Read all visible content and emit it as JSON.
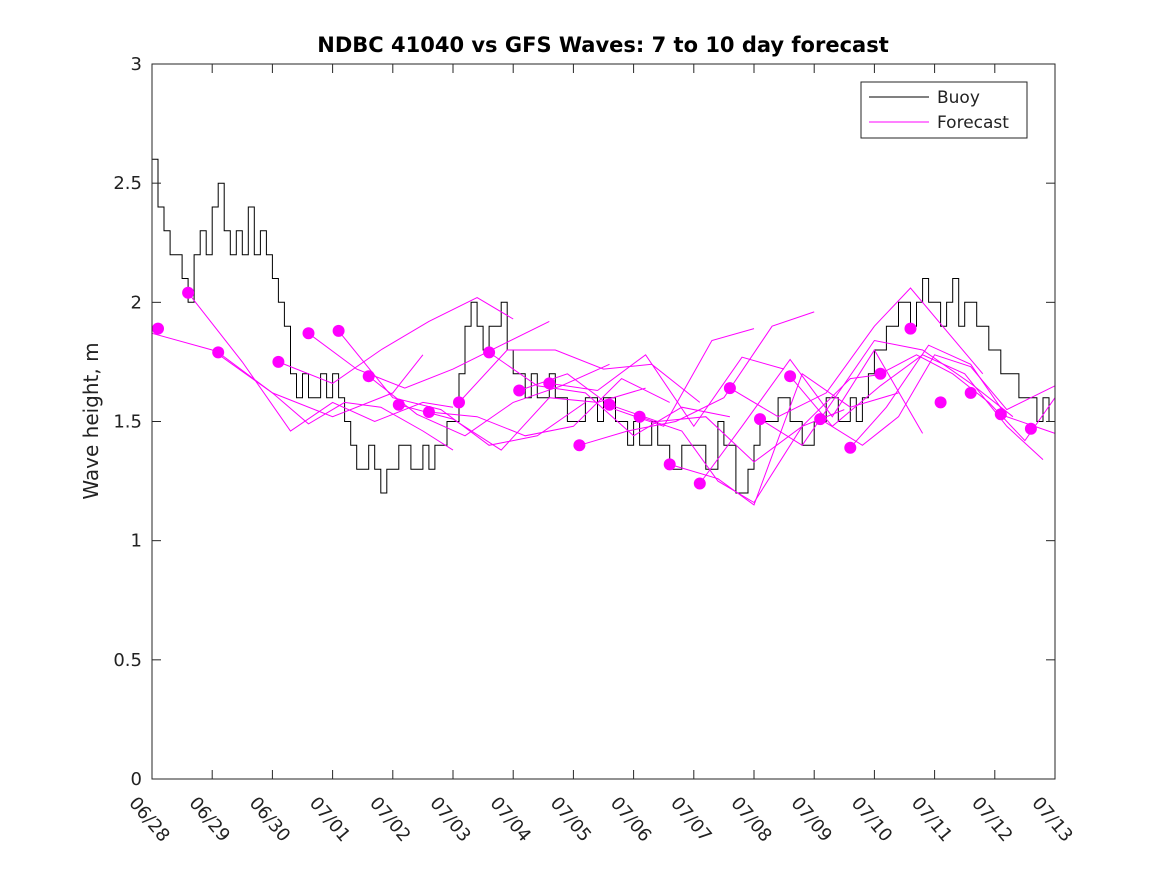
{
  "chart_data": {
    "type": "line",
    "title": "NDBC 41040 vs GFS Waves: 7 to 10 day forecast",
    "xlabel": "",
    "ylabel": "Wave height, m",
    "xlim": [
      "06/28",
      "07/13"
    ],
    "ylim": [
      0,
      3
    ],
    "x_tick_labels": [
      "06/28",
      "06/29",
      "06/30",
      "07/01",
      "07/02",
      "07/03",
      "07/04",
      "07/05",
      "07/06",
      "07/07",
      "07/08",
      "07/09",
      "07/10",
      "07/11",
      "07/12",
      "07/13"
    ],
    "y_ticks": [
      0,
      0.5,
      1,
      1.5,
      2,
      2.5,
      3
    ],
    "y_tick_labels": [
      "0",
      "0.5",
      "1",
      "1.5",
      "2",
      "2.5",
      "3"
    ],
    "grid": false,
    "legend": {
      "position": "top-right",
      "entries": [
        {
          "name": "Buoy",
          "color": "#000000"
        },
        {
          "name": "Forecast",
          "color": "#ff00ff"
        }
      ]
    },
    "series": [
      {
        "name": "Buoy",
        "color": "#000000",
        "style": "step-line",
        "x_days": [
          0.0,
          0.1,
          0.2,
          0.3,
          0.4,
          0.5,
          0.6,
          0.7,
          0.8,
          0.9,
          1.0,
          1.1,
          1.2,
          1.3,
          1.4,
          1.5,
          1.6,
          1.7,
          1.8,
          1.9,
          2.0,
          2.1,
          2.2,
          2.3,
          2.4,
          2.5,
          2.6,
          2.7,
          2.8,
          2.9,
          3.0,
          3.1,
          3.2,
          3.3,
          3.4,
          3.5,
          3.6,
          3.7,
          3.8,
          3.9,
          4.0,
          4.1,
          4.2,
          4.3,
          4.4,
          4.5,
          4.6,
          4.7,
          4.8,
          4.9,
          5.0,
          5.1,
          5.2,
          5.3,
          5.4,
          5.5,
          5.6,
          5.7,
          5.8,
          5.9,
          6.0,
          6.1,
          6.2,
          6.3,
          6.4,
          6.5,
          6.6,
          6.7,
          6.8,
          6.9,
          7.0,
          7.1,
          7.2,
          7.3,
          7.4,
          7.5,
          7.6,
          7.7,
          7.8,
          7.9,
          8.0,
          8.1,
          8.2,
          8.3,
          8.4,
          8.5,
          8.6,
          8.7,
          8.8,
          8.9,
          9.0,
          9.1,
          9.2,
          9.3,
          9.4,
          9.5,
          9.6,
          9.7,
          9.8,
          9.9,
          10.0,
          10.1,
          10.2,
          10.3,
          10.4,
          10.5,
          10.6,
          10.7,
          10.8,
          10.9,
          11.0,
          11.1,
          11.2,
          11.3,
          11.4,
          11.5,
          11.6,
          11.7,
          11.8,
          11.9,
          12.0,
          12.1,
          12.2,
          12.3,
          12.4,
          12.5,
          12.6,
          12.7,
          12.8,
          12.9,
          13.0,
          13.1,
          13.2,
          13.3,
          13.4,
          13.5,
          13.6,
          13.7,
          13.8,
          13.9,
          14.0,
          14.1,
          14.2,
          14.3,
          14.4,
          14.5,
          14.6,
          14.7,
          14.8,
          14.9,
          15.0
        ],
        "values": [
          2.6,
          2.4,
          2.3,
          2.2,
          2.2,
          2.1,
          2.0,
          2.2,
          2.3,
          2.2,
          2.4,
          2.5,
          2.3,
          2.2,
          2.3,
          2.2,
          2.4,
          2.2,
          2.3,
          2.2,
          2.1,
          2.0,
          1.9,
          1.7,
          1.6,
          1.7,
          1.6,
          1.6,
          1.7,
          1.6,
          1.7,
          1.6,
          1.5,
          1.4,
          1.3,
          1.3,
          1.4,
          1.3,
          1.2,
          1.3,
          1.3,
          1.4,
          1.4,
          1.3,
          1.3,
          1.4,
          1.3,
          1.4,
          1.4,
          1.5,
          1.5,
          1.7,
          1.9,
          2.0,
          1.9,
          1.8,
          1.9,
          1.9,
          2.0,
          1.8,
          1.7,
          1.7,
          1.6,
          1.7,
          1.6,
          1.6,
          1.7,
          1.6,
          1.6,
          1.5,
          1.5,
          1.5,
          1.6,
          1.6,
          1.5,
          1.6,
          1.6,
          1.5,
          1.5,
          1.4,
          1.5,
          1.4,
          1.4,
          1.5,
          1.4,
          1.4,
          1.3,
          1.3,
          1.4,
          1.4,
          1.4,
          1.4,
          1.3,
          1.3,
          1.5,
          1.4,
          1.4,
          1.2,
          1.2,
          1.3,
          1.4,
          1.5,
          1.5,
          1.5,
          1.6,
          1.6,
          1.5,
          1.5,
          1.4,
          1.4,
          1.5,
          1.5,
          1.6,
          1.6,
          1.5,
          1.5,
          1.6,
          1.5,
          1.6,
          1.7,
          1.8,
          1.8,
          1.9,
          1.9,
          2.0,
          2.0,
          1.9,
          2.0,
          2.1,
          2.0,
          2.0,
          1.9,
          2.0,
          2.1,
          1.9,
          2.0,
          2.0,
          1.9,
          1.9,
          1.8,
          1.8,
          1.7,
          1.7,
          1.7,
          1.6,
          1.6,
          1.6,
          1.5,
          1.6,
          1.5,
          1.5
        ]
      },
      {
        "name": "Forecast",
        "color": "#ff00ff",
        "x_days": [
          0.0,
          1.0,
          2.0,
          3.0,
          4.0,
          4.5
        ],
        "values": [
          1.87,
          1.8,
          1.62,
          1.52,
          1.62,
          1.78
        ]
      },
      {
        "name": "Forecast",
        "color": "#ff00ff",
        "x_days": [
          0.6,
          1.5,
          2.3,
          3.0,
          3.7,
          4.5,
          5.0
        ],
        "values": [
          2.04,
          1.75,
          1.46,
          1.58,
          1.5,
          1.58,
          1.56
        ]
      },
      {
        "name": "Forecast",
        "color": "#ff00ff",
        "x_days": [
          1.1,
          2.0,
          2.6,
          3.2,
          3.8,
          4.5,
          5.0
        ],
        "values": [
          1.79,
          1.62,
          1.49,
          1.58,
          1.56,
          1.46,
          1.38
        ]
      },
      {
        "name": "Forecast",
        "color": "#ff00ff",
        "x_days": [
          2.1,
          3.0,
          3.8,
          4.6,
          5.4,
          6.0
        ],
        "values": [
          1.75,
          1.66,
          1.8,
          1.92,
          2.02,
          1.93
        ]
      },
      {
        "name": "Forecast",
        "color": "#ff00ff",
        "x_days": [
          2.6,
          3.4,
          4.2,
          5.0,
          5.8,
          6.6
        ],
        "values": [
          1.87,
          1.72,
          1.64,
          1.72,
          1.82,
          1.92
        ]
      },
      {
        "name": "Forecast",
        "color": "#ff00ff",
        "x_days": [
          3.1,
          4.0,
          4.8,
          5.6,
          6.4,
          7.2
        ],
        "values": [
          1.88,
          1.6,
          1.55,
          1.4,
          1.44,
          1.58
        ]
      },
      {
        "name": "Forecast",
        "color": "#ff00ff",
        "x_days": [
          3.6,
          4.4,
          5.2,
          6.0,
          6.8,
          7.6
        ],
        "values": [
          1.69,
          1.53,
          1.44,
          1.58,
          1.65,
          1.74
        ]
      },
      {
        "name": "Forecast",
        "color": "#ff00ff",
        "x_days": [
          4.1,
          5.0,
          5.8,
          6.6,
          7.4,
          8.2
        ],
        "values": [
          1.57,
          1.51,
          1.38,
          1.6,
          1.58,
          1.64
        ]
      },
      {
        "name": "Forecast",
        "color": "#ff00ff",
        "x_days": [
          4.6,
          5.4,
          6.2,
          7.0,
          7.8,
          8.6
        ],
        "values": [
          1.54,
          1.52,
          1.44,
          1.48,
          1.68,
          1.58
        ]
      },
      {
        "name": "Forecast",
        "color": "#ff00ff",
        "x_days": [
          5.1,
          5.9,
          6.7,
          7.5,
          8.3,
          9.1
        ],
        "values": [
          1.58,
          1.8,
          1.8,
          1.72,
          1.74,
          1.58
        ]
      },
      {
        "name": "Forecast",
        "color": "#ff00ff",
        "x_days": [
          5.6,
          6.4,
          7.2,
          8.0,
          8.8,
          9.6
        ],
        "values": [
          1.79,
          1.65,
          1.62,
          1.44,
          1.56,
          1.52
        ]
      },
      {
        "name": "Forecast",
        "color": "#ff00ff",
        "x_days": [
          6.1,
          6.9,
          7.7,
          8.5,
          9.3,
          10.0
        ],
        "values": [
          1.63,
          1.7,
          1.55,
          1.48,
          1.84,
          1.89
        ]
      },
      {
        "name": "Forecast",
        "color": "#ff00ff",
        "x_days": [
          6.6,
          7.4,
          8.2,
          9.0,
          9.8,
          10.5
        ],
        "values": [
          1.66,
          1.63,
          1.78,
          1.48,
          1.77,
          1.72
        ]
      },
      {
        "name": "Forecast",
        "color": "#ff00ff",
        "x_days": [
          7.1,
          7.9,
          8.7,
          9.5,
          10.3,
          11.0
        ],
        "values": [
          1.4,
          1.46,
          1.5,
          1.6,
          1.9,
          1.96
        ]
      },
      {
        "name": "Forecast",
        "color": "#ff00ff",
        "x_days": [
          7.6,
          8.4,
          9.2,
          10.0,
          10.8,
          11.5
        ],
        "values": [
          1.57,
          1.5,
          1.52,
          1.33,
          1.48,
          1.55
        ]
      },
      {
        "name": "Forecast",
        "color": "#ff00ff",
        "x_days": [
          8.1,
          8.8,
          9.4,
          10.0,
          10.8,
          11.6,
          12.2
        ],
        "values": [
          1.52,
          1.46,
          1.25,
          1.16,
          1.48,
          1.68,
          1.7
        ]
      },
      {
        "name": "Forecast",
        "color": "#ff00ff",
        "x_days": [
          8.6,
          9.4,
          10.0,
          10.8,
          11.6,
          12.4
        ],
        "values": [
          1.32,
          1.26,
          1.15,
          1.7,
          1.56,
          1.62
        ]
      },
      {
        "name": "Forecast",
        "color": "#ff00ff",
        "x_days": [
          9.1,
          9.8,
          10.6,
          11.3,
          12.0,
          12.8
        ],
        "values": [
          1.24,
          1.48,
          1.76,
          1.52,
          1.8,
          1.45
        ]
      },
      {
        "name": "Forecast",
        "color": "#ff00ff",
        "x_days": [
          9.6,
          10.4,
          11.2,
          12.0,
          12.6,
          13.2,
          13.8
        ],
        "values": [
          1.64,
          1.52,
          1.62,
          1.9,
          2.06,
          1.88,
          1.7
        ]
      },
      {
        "name": "Forecast",
        "color": "#ff00ff",
        "x_days": [
          10.1,
          10.8,
          11.4,
          12.0,
          12.8,
          13.6,
          14.3
        ],
        "values": [
          1.51,
          1.4,
          1.62,
          1.84,
          1.8,
          1.66,
          1.52
        ]
      },
      {
        "name": "Forecast",
        "color": "#ff00ff",
        "x_days": [
          10.6,
          11.3,
          12.1,
          12.8,
          13.5,
          14.2,
          14.8
        ],
        "values": [
          1.69,
          1.48,
          1.65,
          1.78,
          1.7,
          1.48,
          1.34
        ]
      },
      {
        "name": "Forecast",
        "color": "#ff00ff",
        "x_days": [
          11.1,
          11.8,
          12.4,
          13.0,
          13.6,
          14.2,
          15.0
        ],
        "values": [
          1.51,
          1.4,
          1.52,
          1.78,
          1.73,
          1.55,
          1.65
        ]
      },
      {
        "name": "Forecast",
        "color": "#ff00ff",
        "x_days": [
          11.6,
          12.2,
          12.9,
          13.6,
          14.2,
          15.0
        ],
        "values": [
          1.39,
          1.56,
          1.82,
          1.74,
          1.52,
          1.45
        ]
      },
      {
        "name": "Forecast",
        "color": "#ff00ff",
        "x_days": [
          12.1,
          12.7,
          13.3,
          13.9,
          14.5,
          15.0
        ],
        "values": [
          1.7,
          1.78,
          1.7,
          1.58,
          1.42,
          1.6
        ]
      }
    ],
    "markers": {
      "name": "Forecast",
      "color": "#ff00ff",
      "x_days": [
        0.1,
        0.6,
        1.1,
        2.1,
        2.6,
        3.1,
        3.6,
        4.1,
        4.6,
        5.1,
        5.6,
        6.1,
        6.6,
        7.1,
        7.6,
        8.1,
        8.6,
        9.1,
        9.6,
        10.1,
        10.6,
        11.1,
        11.6,
        12.1,
        12.6,
        13.1,
        13.6,
        14.1,
        14.6
      ],
      "values": [
        1.89,
        2.04,
        1.79,
        1.75,
        1.87,
        1.88,
        1.69,
        1.57,
        1.54,
        1.58,
        1.79,
        1.63,
        1.66,
        1.4,
        1.57,
        1.52,
        1.32,
        1.24,
        1.64,
        1.51,
        1.69,
        1.51,
        1.39,
        1.7,
        1.89,
        1.58,
        1.62,
        1.53,
        1.47
      ]
    }
  }
}
